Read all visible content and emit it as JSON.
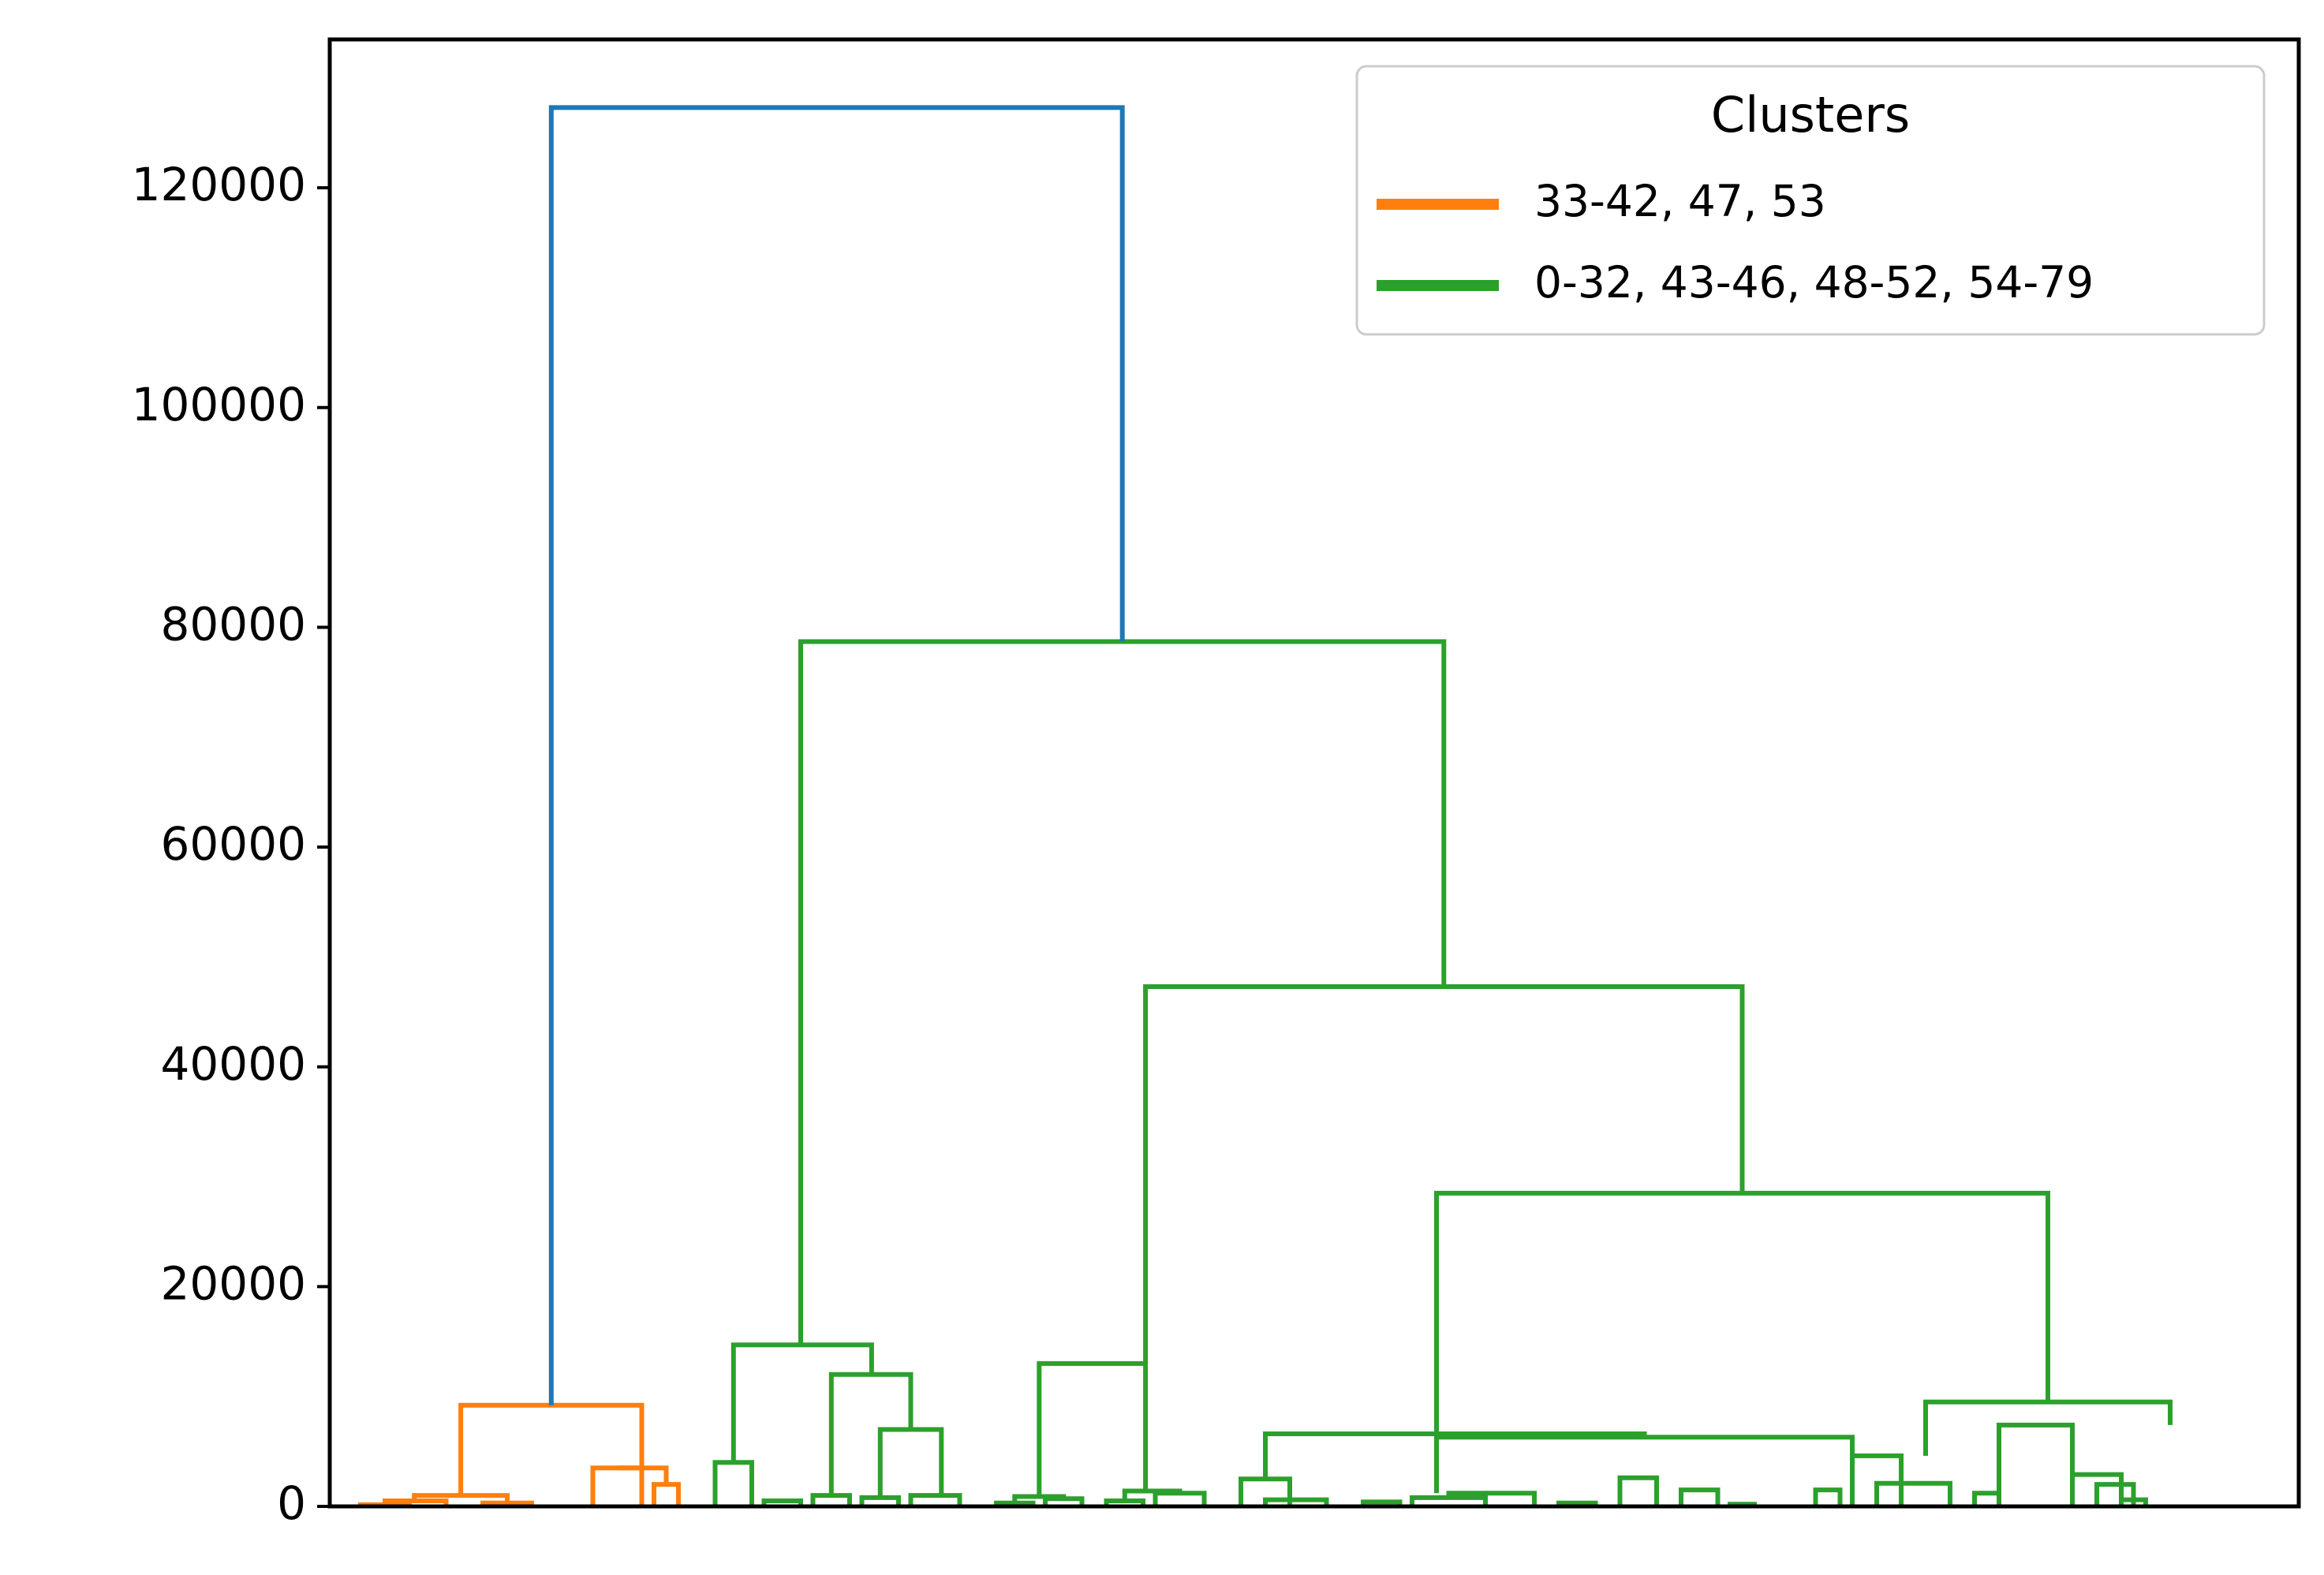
{
  "chart_data": {
    "type": "dendrogram",
    "title": "",
    "xlabel": "",
    "ylabel": "",
    "ylim": [
      0,
      133500
    ],
    "yticks": [
      0,
      20000,
      40000,
      60000,
      80000,
      100000,
      120000
    ],
    "ytick_labels": [
      "0",
      "20000",
      "40000",
      "60000",
      "80000",
      "100000",
      "120000"
    ],
    "xticks_visible": false,
    "grid": false,
    "n_leaves": 80,
    "colors": {
      "above_threshold": "#1f77b4",
      "cluster_orange": "#ff7f0e",
      "cluster_green": "#2ca02c"
    },
    "legend": {
      "title": "Clusters",
      "placement": "top-right",
      "entries": [
        {
          "label": "33-42, 47, 53",
          "color": "#ff7f0e"
        },
        {
          "label": "0-32, 43-46, 48-52, 54-79",
          "color": "#2ca02c"
        }
      ]
    },
    "links": [
      {
        "x": [
          1.0,
          1.0,
          3.0,
          3.0
        ],
        "y": [
          0,
          150,
          150,
          0
        ],
        "color": "#ff7f0e"
      },
      {
        "x": [
          2.0,
          2.0,
          4.5,
          4.5
        ],
        "y": [
          150,
          500,
          500,
          0
        ],
        "color": "#ff7f0e"
      },
      {
        "x": [
          6.0,
          6.0,
          8.0,
          8.0
        ],
        "y": [
          0,
          300,
          300,
          0
        ],
        "color": "#ff7f0e"
      },
      {
        "x": [
          3.2,
          3.2,
          7.0,
          7.0
        ],
        "y": [
          500,
          1000,
          1000,
          300
        ],
        "color": "#ff7f0e"
      },
      {
        "x": [
          10.5,
          10.5,
          12.5,
          12.5
        ],
        "y": [
          0,
          3500,
          3500,
          0
        ],
        "color": "#ff7f0e"
      },
      {
        "x": [
          13.0,
          13.0,
          14.0,
          14.0
        ],
        "y": [
          0,
          2000,
          2000,
          0
        ],
        "color": "#ff7f0e"
      },
      {
        "x": [
          11.5,
          11.5,
          13.5,
          13.5
        ],
        "y": [
          3500,
          3500,
          3500,
          2000
        ],
        "color": "#ff7f0e"
      },
      {
        "x": [
          5.1,
          5.1,
          12.5,
          12.5
        ],
        "y": [
          1000,
          9200,
          9200,
          3500
        ],
        "color": "#ff7f0e"
      },
      {
        "x": [
          15.5,
          15.5,
          17.0,
          17.0
        ],
        "y": [
          0,
          4000,
          4000,
          0
        ],
        "color": "#2ca02c"
      },
      {
        "x": [
          17.5,
          17.5,
          19.0,
          19.0
        ],
        "y": [
          0,
          500,
          500,
          0
        ],
        "color": "#2ca02c"
      },
      {
        "x": [
          19.5,
          19.5,
          21.0,
          21.0
        ],
        "y": [
          0,
          1000,
          1000,
          0
        ],
        "color": "#2ca02c"
      },
      {
        "x": [
          21.5,
          21.5,
          23.0,
          23.0
        ],
        "y": [
          0,
          800,
          800,
          0
        ],
        "color": "#2ca02c"
      },
      {
        "x": [
          23.5,
          23.5,
          25.5,
          25.5
        ],
        "y": [
          0,
          1000,
          1000,
          0
        ],
        "color": "#2ca02c"
      },
      {
        "x": [
          22.25,
          22.25,
          24.75,
          24.75
        ],
        "y": [
          800,
          7000,
          7000,
          1000
        ],
        "color": "#2ca02c"
      },
      {
        "x": [
          20.25,
          20.25,
          23.5,
          23.5
        ],
        "y": [
          1000,
          12000,
          12000,
          7000
        ],
        "color": "#2ca02c"
      },
      {
        "x": [
          16.25,
          16.25,
          21.9,
          21.9
        ],
        "y": [
          4000,
          14700,
          14700,
          12000
        ],
        "color": "#2ca02c"
      },
      {
        "x": [
          27.0,
          27.0,
          28.5,
          28.5
        ],
        "y": [
          0,
          300,
          300,
          0
        ],
        "color": "#2ca02c"
      },
      {
        "x": [
          29.0,
          29.0,
          30.5,
          30.5
        ],
        "y": [
          0,
          700,
          700,
          0
        ],
        "color": "#2ca02c"
      },
      {
        "x": [
          27.75,
          27.75,
          29.75,
          29.75
        ],
        "y": [
          300,
          900,
          900,
          700
        ],
        "color": "#2ca02c"
      },
      {
        "x": [
          31.5,
          31.5,
          33.0,
          33.0
        ],
        "y": [
          0,
          500,
          500,
          0
        ],
        "color": "#2ca02c"
      },
      {
        "x": [
          33.5,
          33.5,
          35.5,
          35.5
        ],
        "y": [
          0,
          1200,
          1200,
          0
        ],
        "color": "#2ca02c"
      },
      {
        "x": [
          32.25,
          32.25,
          34.5,
          34.5
        ],
        "y": [
          500,
          1400,
          1400,
          1200
        ],
        "color": "#2ca02c"
      },
      {
        "x": [
          28.75,
          28.75,
          33.1,
          33.1
        ],
        "y": [
          900,
          13000,
          13000,
          1400
        ],
        "color": "#2ca02c"
      },
      {
        "x": [
          37.0,
          37.0,
          39.0,
          39.0
        ],
        "y": [
          0,
          2500,
          2500,
          0
        ],
        "color": "#2ca02c"
      },
      {
        "x": [
          38.0,
          38.0,
          40.5,
          40.5
        ],
        "y": [
          0,
          600,
          600,
          0
        ],
        "color": "#2ca02c"
      },
      {
        "x": [
          42.0,
          42.0,
          43.5,
          43.5
        ],
        "y": [
          0,
          400,
          400,
          0
        ],
        "color": "#2ca02c"
      },
      {
        "x": [
          44.0,
          44.0,
          47.0,
          47.0
        ],
        "y": [
          0,
          800,
          800,
          0
        ],
        "color": "#2ca02c"
      },
      {
        "x": [
          45.5,
          45.5,
          49.0,
          49.0
        ],
        "y": [
          800,
          1200,
          1200,
          0
        ],
        "color": "#2ca02c"
      },
      {
        "x": [
          38.0,
          38.0,
          53.5,
          53.5
        ],
        "y": [
          2500,
          6600,
          6600,
          6300
        ],
        "color": "#2ca02c"
      },
      {
        "x": [
          50.0,
          50.0,
          51.5,
          51.5
        ],
        "y": [
          0,
          300,
          300,
          0
        ],
        "color": "#2ca02c"
      },
      {
        "x": [
          52.5,
          52.5,
          54.0,
          54.0
        ],
        "y": [
          0,
          2600,
          2600,
          0
        ],
        "color": "#2ca02c"
      },
      {
        "x": [
          55.0,
          55.0,
          56.5,
          56.5
        ],
        "y": [
          0,
          1500,
          1500,
          0
        ],
        "color": "#2ca02c"
      },
      {
        "x": [
          57.0,
          57.0,
          58.0,
          58.0
        ],
        "y": [
          0,
          200,
          200,
          0
        ],
        "color": "#2ca02c"
      },
      {
        "x": [
          45.0,
          45.0,
          62.0,
          62.0
        ],
        "y": [
          1200,
          6300,
          6300,
          2600
        ],
        "color": "#2ca02c"
      },
      {
        "x": [
          60.5,
          60.5,
          61.5,
          61.5
        ],
        "y": [
          0,
          1500,
          1500,
          0
        ],
        "color": "#2ca02c"
      },
      {
        "x": [
          62.0,
          62.0,
          64.0,
          64.0
        ],
        "y": [
          0,
          4600,
          4600,
          0
        ],
        "color": "#2ca02c"
      },
      {
        "x": [
          63.0,
          63.0,
          66.0,
          66.0
        ],
        "y": [
          0,
          2100,
          2100,
          0
        ],
        "color": "#2ca02c"
      },
      {
        "x": [
          67.0,
          67.0,
          68.0,
          68.0
        ],
        "y": [
          0,
          1200,
          1200,
          0
        ],
        "color": "#2ca02c"
      },
      {
        "x": [
          68.0,
          68.0,
          71.0,
          71.0
        ],
        "y": [
          0,
          7400,
          7400,
          0
        ],
        "color": "#2ca02c"
      },
      {
        "x": [
          71.0,
          71.0,
          73.0,
          73.0
        ],
        "y": [
          0,
          2900,
          2900,
          0
        ],
        "color": "#2ca02c"
      },
      {
        "x": [
          72.0,
          72.0,
          73.5,
          73.5
        ],
        "y": [
          0,
          2000,
          2000,
          0
        ],
        "color": "#2ca02c"
      },
      {
        "x": [
          73.0,
          73.0,
          74.0,
          74.0
        ],
        "y": [
          0,
          600,
          600,
          0
        ],
        "color": "#2ca02c"
      },
      {
        "x": [
          65.0,
          65.0,
          75.0,
          75.0
        ],
        "y": [
          4600,
          9500,
          9500,
          7400
        ],
        "color": "#2ca02c"
      },
      {
        "x": [
          45.0,
          45.0,
          70.0,
          70.0
        ],
        "y": [
          6600,
          28500,
          28500,
          9500
        ],
        "color": "#2ca02c"
      },
      {
        "x": [
          33.1,
          33.1,
          57.5,
          57.5
        ],
        "y": [
          13000,
          47300,
          47300,
          28500
        ],
        "color": "#2ca02c"
      },
      {
        "x": [
          19.0,
          19.0,
          45.3,
          45.3
        ],
        "y": [
          14700,
          78700,
          78700,
          47300
        ],
        "color": "#2ca02c"
      },
      {
        "x": [
          8.8,
          8.8,
          32.15,
          32.15
        ],
        "y": [
          9200,
          127300,
          127300,
          78700
        ],
        "color": "#1f77b4"
      }
    ]
  }
}
